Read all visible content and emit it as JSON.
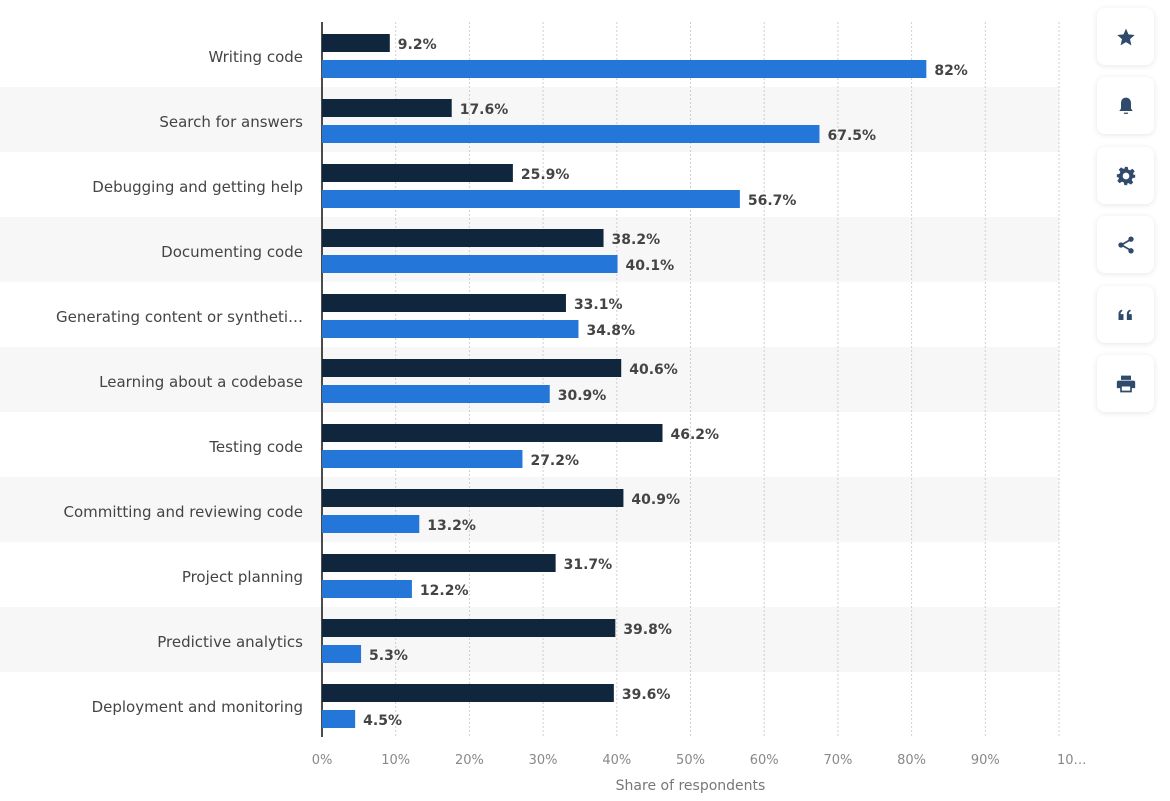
{
  "chart_data": {
    "type": "bar",
    "orientation": "horizontal",
    "categories": [
      "Writing code",
      "Search for answers",
      "Debugging and getting help",
      "Documenting code",
      "Generating content or syntheti…",
      "Learning about a codebase",
      "Testing code",
      "Committing and reviewing code",
      "Project planning",
      "Predictive analytics",
      "Deployment and monitoring"
    ],
    "series": [
      {
        "values": [
          9.2,
          17.6,
          25.9,
          38.2,
          33.1,
          40.6,
          46.2,
          40.9,
          31.7,
          39.8,
          39.6
        ],
        "labels": [
          "9.2%",
          "17.6%",
          "25.9%",
          "38.2%",
          "33.1%",
          "40.6%",
          "46.2%",
          "40.9%",
          "31.7%",
          "39.8%",
          "39.6%"
        ],
        "color": "#10263d"
      },
      {
        "values": [
          82,
          67.5,
          56.7,
          40.1,
          34.8,
          30.9,
          27.2,
          13.2,
          12.2,
          5.3,
          4.5
        ],
        "labels": [
          "82%",
          "67.5%",
          "56.7%",
          "40.1%",
          "34.8%",
          "30.9%",
          "27.2%",
          "13.2%",
          "12.2%",
          "5.3%",
          "4.5%"
        ],
        "color": "#2476d9"
      }
    ],
    "xlabel": "Share of respondents",
    "xlim": [
      0,
      100
    ],
    "xticks": [
      "0%",
      "10%",
      "20%",
      "30%",
      "40%",
      "50%",
      "60%",
      "70%",
      "80%",
      "90%",
      "10…"
    ],
    "grid": true,
    "legend": "none"
  },
  "sidebar": {
    "icons": [
      "star-icon",
      "bell-icon",
      "gear-icon",
      "share-icon",
      "quote-icon",
      "print-icon"
    ]
  }
}
